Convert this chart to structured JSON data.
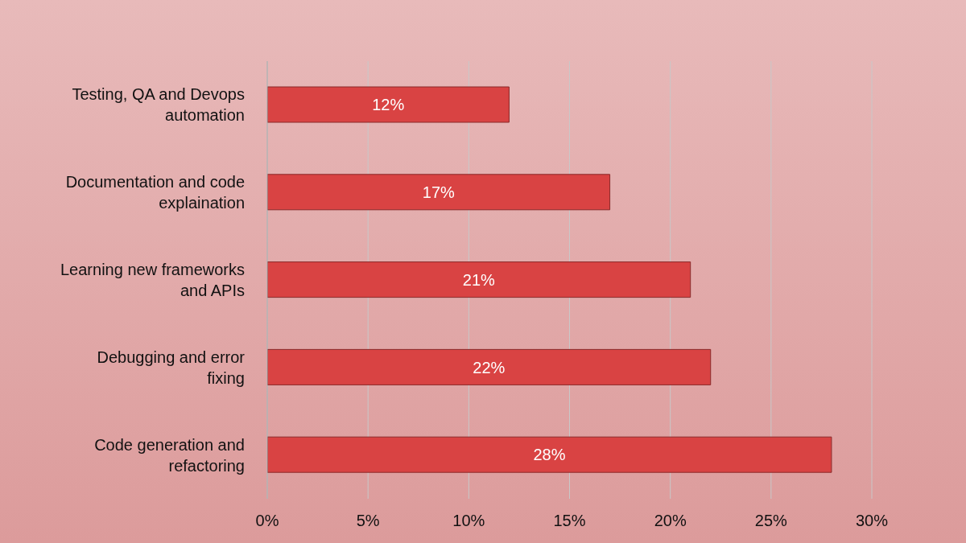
{
  "chart_data": {
    "type": "bar",
    "orientation": "horizontal",
    "categories": [
      "Testing, QA and Devops automation",
      "Documentation and code explaination",
      "Learning new frameworks and APIs",
      "Debugging and error fixing",
      "Code generation and refactoring"
    ],
    "values": [
      12,
      17,
      21,
      22,
      28
    ],
    "value_labels": [
      "12%",
      "17%",
      "21%",
      "22%",
      "28%"
    ],
    "color": "#d94343",
    "xlim": [
      0,
      30
    ],
    "xticks": [
      {
        "value": 0,
        "label": "0%"
      },
      {
        "value": 5,
        "label": "5%"
      },
      {
        "value": 10,
        "label": "10%"
      },
      {
        "value": 15,
        "label": "15%"
      },
      {
        "value": 20,
        "label": "20%"
      },
      {
        "value": 25,
        "label": "25%"
      },
      {
        "value": 30,
        "label": "30%"
      }
    ],
    "grid": "x"
  }
}
